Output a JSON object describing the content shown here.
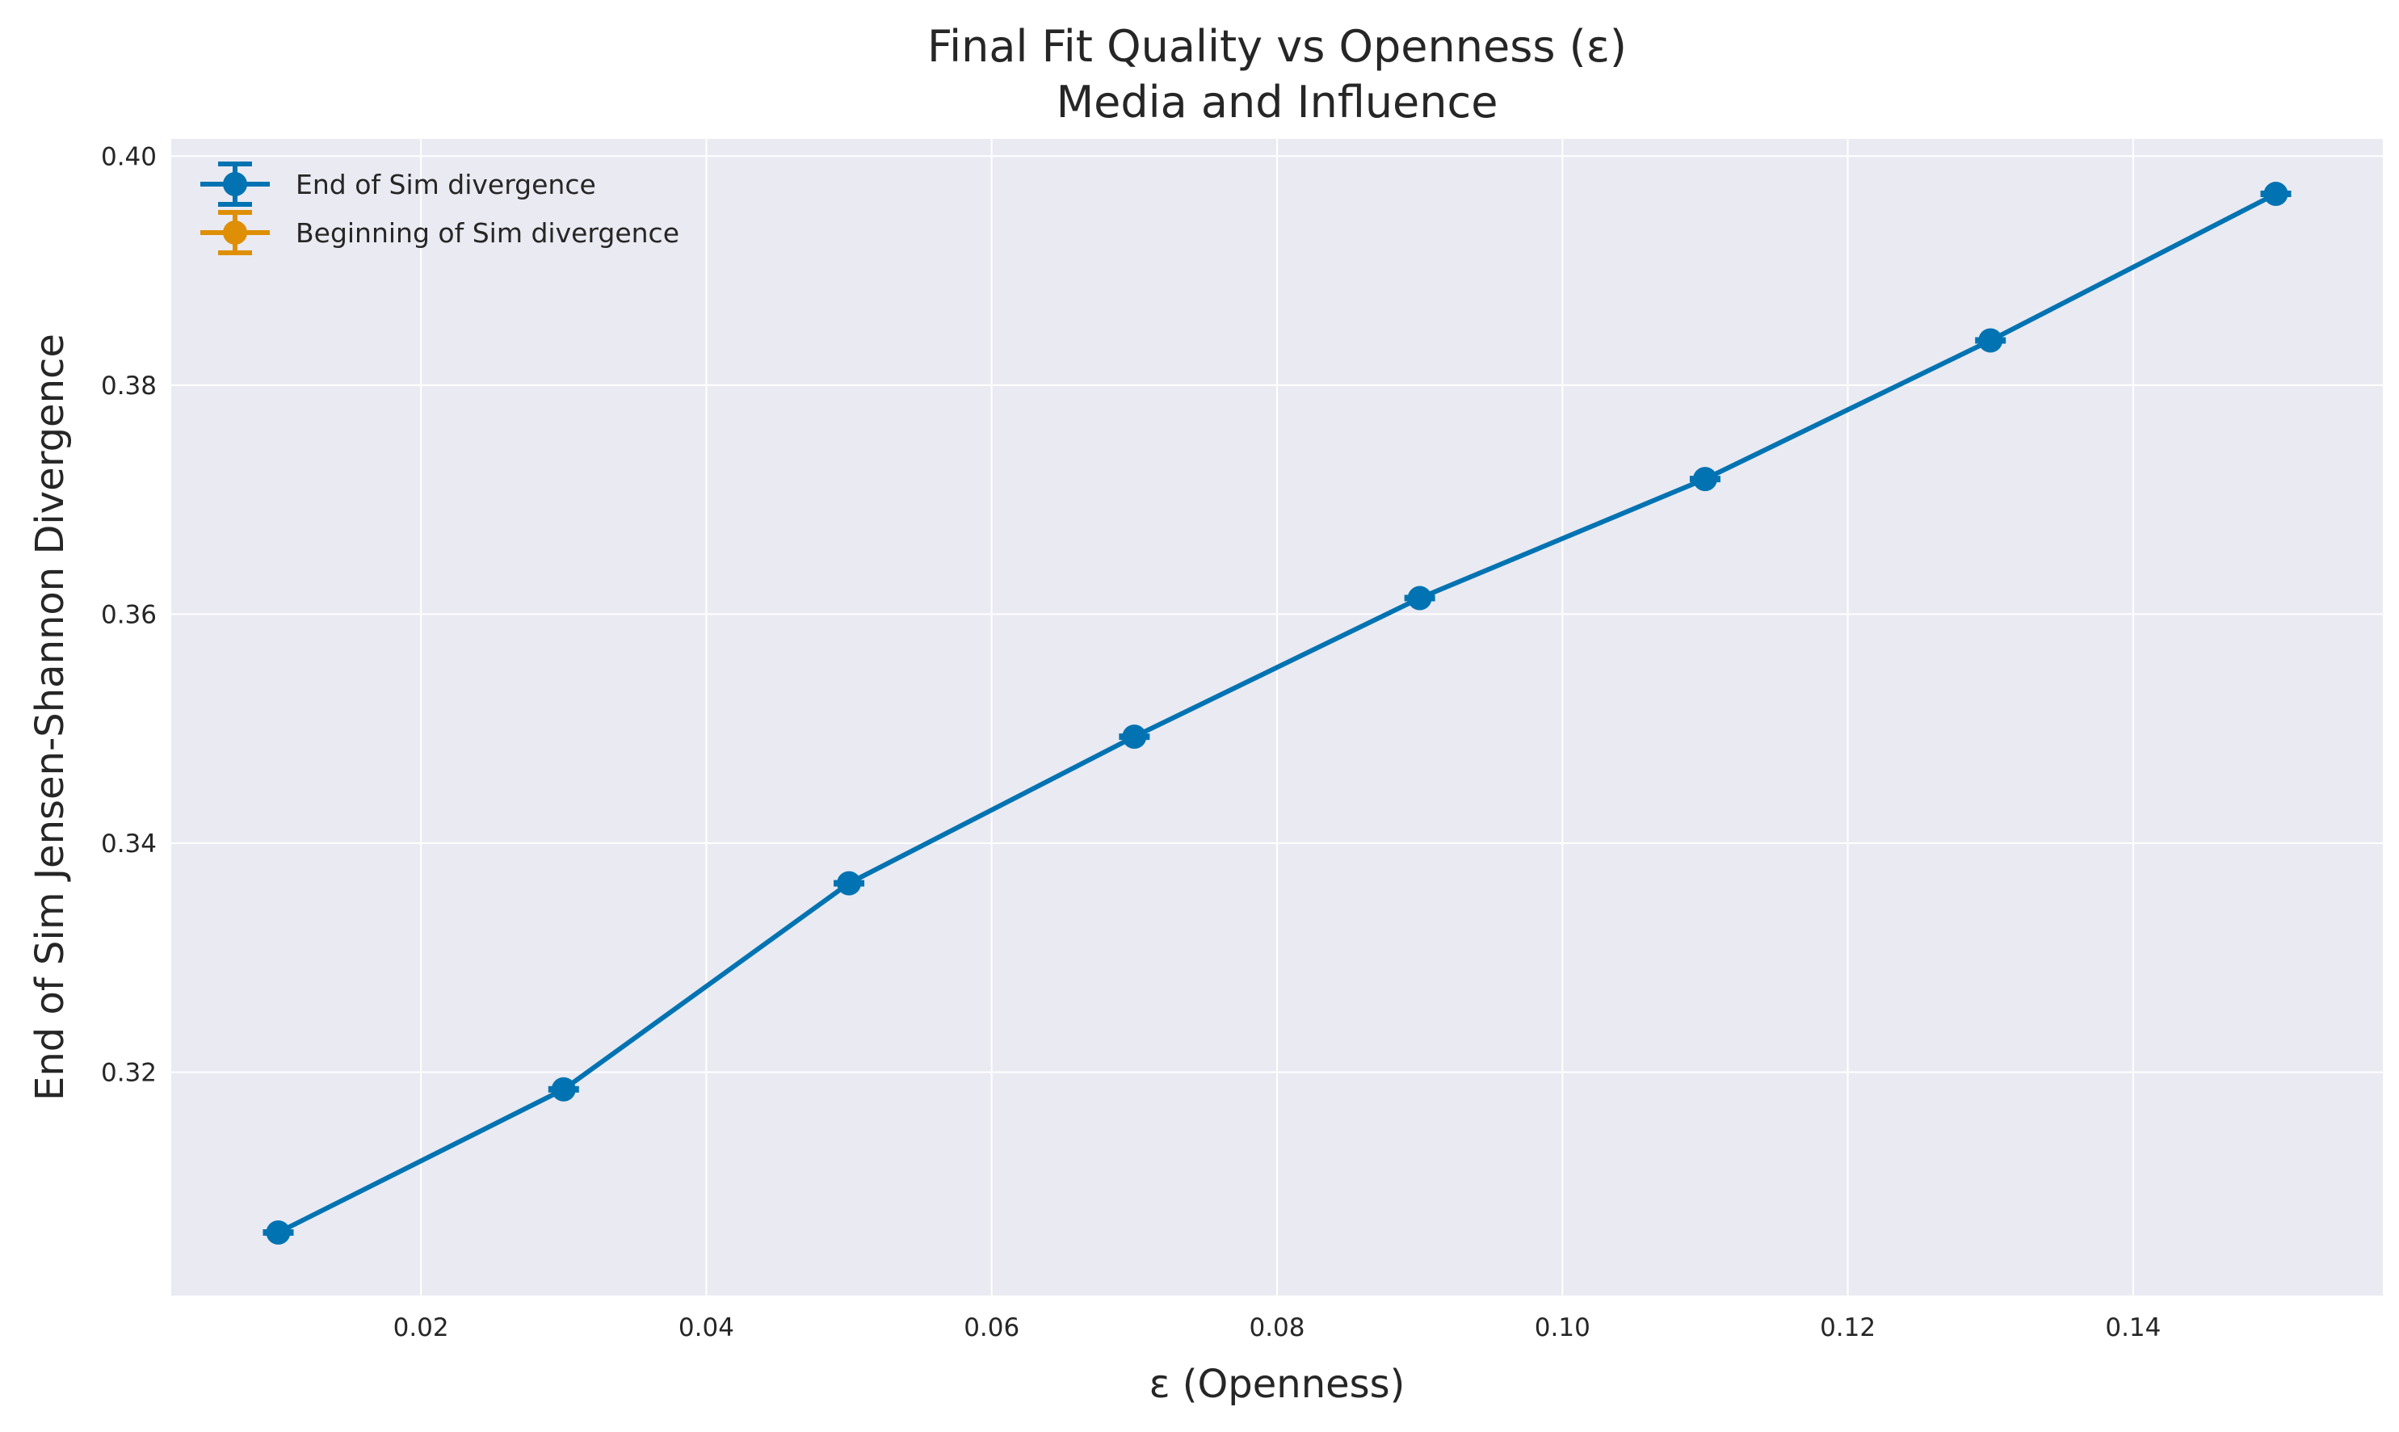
{
  "chart_data": {
    "type": "line",
    "title": "Final Fit Quality vs Openness (ε)",
    "subtitle": "Media and Influence",
    "xlabel": "ε (Openness)",
    "ylabel": "End of Sim Jensen-Shannon Divergence",
    "xlim": [
      0.0025,
      0.1575
    ],
    "ylim": [
      0.3005,
      0.4015
    ],
    "x_ticks": [
      "0.02",
      "0.04",
      "0.06",
      "0.08",
      "0.10",
      "0.12",
      "0.14"
    ],
    "x_tick_values": [
      0.02,
      0.04,
      0.06,
      0.08,
      0.1,
      0.12,
      0.14
    ],
    "y_ticks": [
      "0.32",
      "0.34",
      "0.36",
      "0.38",
      "0.40"
    ],
    "y_tick_values": [
      0.32,
      0.34,
      0.36,
      0.38,
      0.4
    ],
    "grid": true,
    "legend_position": "top-left",
    "series": [
      {
        "name": "End of Sim divergence",
        "color": "#0173b2",
        "x": [
          0.01,
          0.03,
          0.05,
          0.07,
          0.09,
          0.11,
          0.13,
          0.15
        ],
        "y": [
          0.306,
          0.3185,
          0.3365,
          0.3493,
          0.3614,
          0.3718,
          0.3839,
          0.3967
        ]
      },
      {
        "name": "Beginning of Sim divergence",
        "color": "#de8f05",
        "x": [],
        "y": []
      }
    ]
  }
}
